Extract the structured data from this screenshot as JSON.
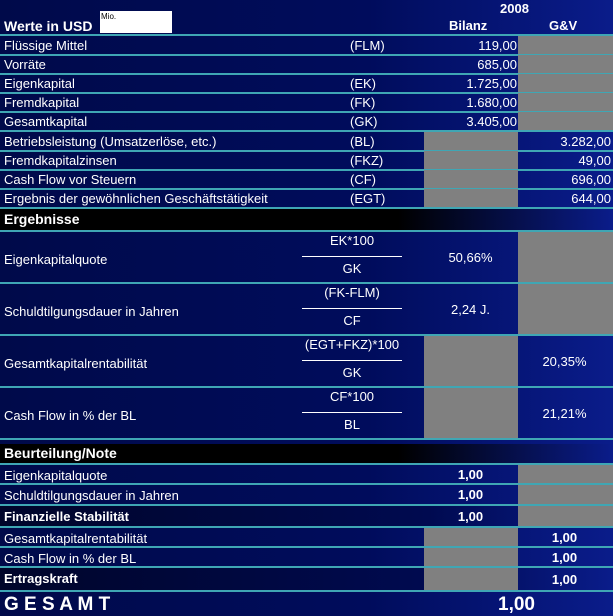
{
  "header": {
    "title": "Werte in USD",
    "unit_box": "Mio.",
    "year": "2008",
    "col_bilanz": "Bilanz",
    "col_guv": "G&V"
  },
  "inputs": [
    {
      "label": "Flüssige Mittel",
      "abbr": "(FLM)",
      "bilanz": "119,00",
      "guv": ""
    },
    {
      "label": "Vorräte",
      "abbr": "",
      "bilanz": "685,00",
      "guv": ""
    },
    {
      "label": "Eigenkapital",
      "abbr": "(EK)",
      "bilanz": "1.725,00",
      "guv": ""
    },
    {
      "label": "Fremdkapital",
      "abbr": "(FK)",
      "bilanz": "1.680,00",
      "guv": ""
    },
    {
      "label": "Gesamtkapital",
      "abbr": "(GK)",
      "bilanz": "3.405,00",
      "guv": ""
    },
    {
      "label": "Betriebsleistung (Umsatzerlöse, etc.)",
      "abbr": "(BL)",
      "bilanz": "",
      "guv": "3.282,00"
    },
    {
      "label": "Fremdkapitalzinsen",
      "abbr": "(FKZ)",
      "bilanz": "",
      "guv": "49,00"
    },
    {
      "label": "Cash Flow vor Steuern",
      "abbr": "(CF)",
      "bilanz": "",
      "guv": "696,00"
    },
    {
      "label": "Ergebnis der gewöhnlichen Geschäftstätigkeit",
      "abbr": "(EGT)",
      "bilanz": "",
      "guv": "644,00"
    }
  ],
  "results": {
    "title": "Ergebnisse",
    "rows": [
      {
        "label": "Eigenkapitalquote",
        "numerator": "EK*100",
        "denominator": "GK",
        "bilanz": "50,66%",
        "guv": ""
      },
      {
        "label": "Schuldtilgungsdauer in Jahren",
        "numerator": "(FK-FLM)",
        "denominator": "CF",
        "bilanz": "2,24 J.",
        "guv": ""
      },
      {
        "label": "Gesamtkapitalrentabilität",
        "numerator": "(EGT+FKZ)*100",
        "denominator": "GK",
        "bilanz": "",
        "guv": "20,35%"
      },
      {
        "label": "Cash Flow in % der BL",
        "numerator": "CF*100",
        "denominator": "BL",
        "bilanz": "",
        "guv": "21,21%"
      }
    ]
  },
  "grades": {
    "title": "Beurteilung/Note",
    "rows": [
      {
        "label": "Eigenkapitalquote",
        "bilanz": "1,00",
        "guv": ""
      },
      {
        "label": "Schuldtilgungsdauer in Jahren",
        "bilanz": "1,00",
        "guv": ""
      },
      {
        "label": "Finanzielle Stabilität",
        "bilanz": "1,00",
        "guv": ""
      },
      {
        "label": "Gesamtkapitalrentabilität",
        "bilanz": "",
        "guv": "1,00"
      },
      {
        "label": "Cash Flow in % der BL",
        "bilanz": "",
        "guv": "1,00"
      },
      {
        "label": "Ertragskraft",
        "bilanz": "",
        "guv": "1,00"
      }
    ]
  },
  "total": {
    "label": "G E S A M T",
    "value": "1,00"
  },
  "colors": {
    "background": "#000a50",
    "grey_cell": "#808080",
    "separator": "#3fa6b4"
  }
}
